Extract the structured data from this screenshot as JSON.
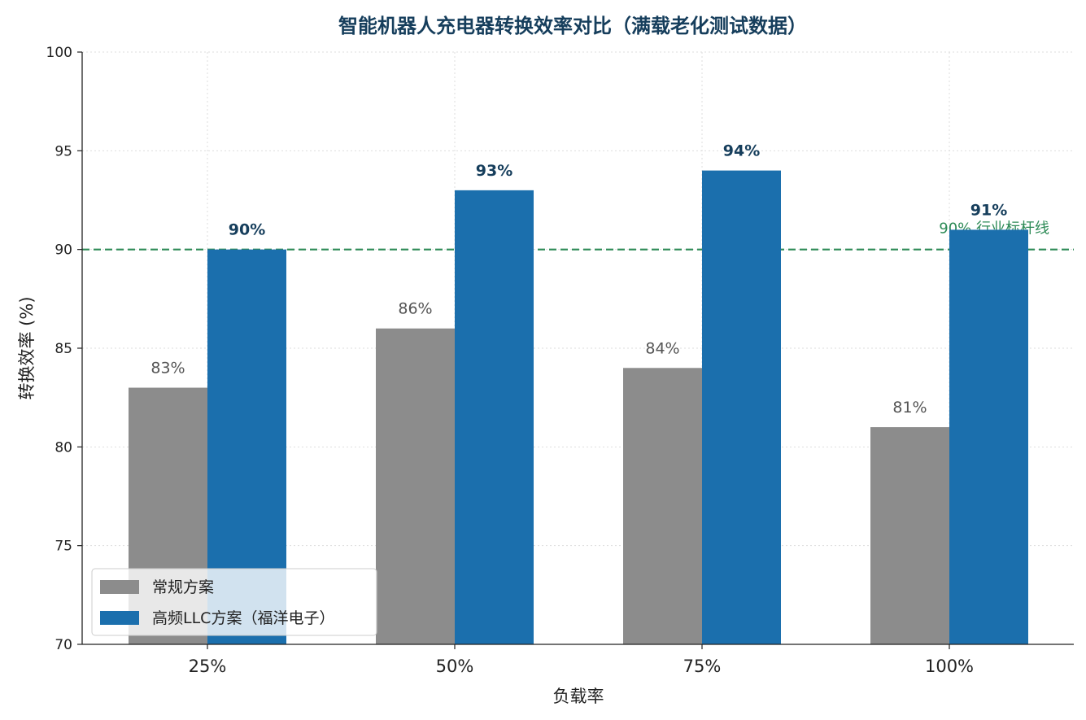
{
  "chart_data": {
    "type": "bar",
    "title": "智能机器人充电器转换效率对比（满载老化测试数据）",
    "xlabel": "负载率",
    "ylabel": "转换效率 (%)",
    "categories": [
      "25%",
      "50%",
      "75%",
      "100%"
    ],
    "ylim": [
      70,
      100
    ],
    "yticks": [
      70,
      75,
      80,
      85,
      90,
      95,
      100
    ],
    "series": [
      {
        "name": "常规方案",
        "values": [
          83,
          86,
          84,
          81
        ],
        "labels": [
          "83%",
          "86%",
          "84%",
          "81%"
        ],
        "color": "#8c8c8c"
      },
      {
        "name": "高频LLC方案（福洋电子）",
        "values": [
          90,
          93,
          94,
          91
        ],
        "labels": [
          "90%",
          "93%",
          "94%",
          "91%"
        ],
        "color": "#1b6fad"
      }
    ],
    "reference_line": {
      "value": 90,
      "label": "90% 行业标杆线",
      "color": "#2e8b57"
    },
    "grid": true,
    "legend": "lower-left"
  }
}
